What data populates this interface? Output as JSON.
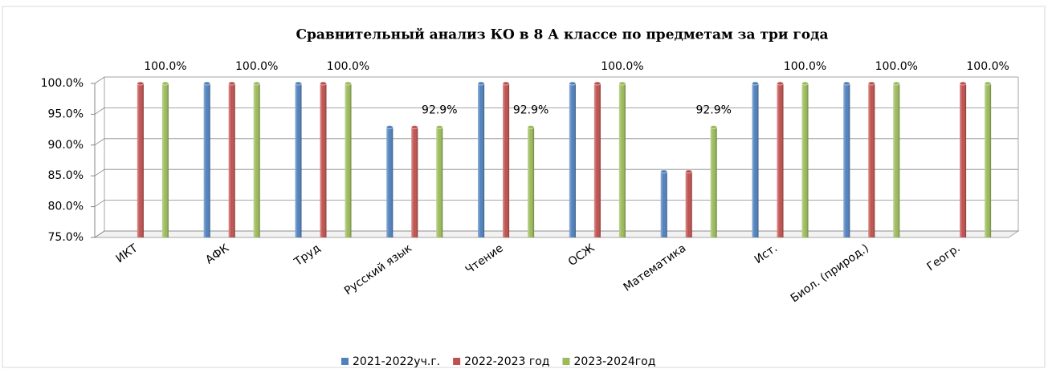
{
  "chart_data": {
    "type": "bar3d",
    "title": "Сравнительный анализ КО в 8 А классе по предметам за три года",
    "categories": [
      "ИКТ",
      "АФК",
      "Труд",
      "Русский язык",
      "Чтение",
      "ОСЖ",
      "Математика",
      "Ист.",
      "Биол. (природ.)",
      "Геогр."
    ],
    "series": [
      {
        "name": "2021-2022уч.г.",
        "color": "#4f81bd",
        "values": [
          null,
          100,
          100,
          92.9,
          100,
          100,
          85.7,
          100,
          100,
          null
        ]
      },
      {
        "name": "2022-2023 год",
        "color": "#c0504d",
        "values": [
          100,
          100,
          100,
          92.9,
          100,
          100,
          85.7,
          100,
          100,
          100
        ]
      },
      {
        "name": "2023-2024год",
        "color": "#9bbb59",
        "values": [
          100,
          100,
          100,
          92.9,
          92.9,
          100,
          92.9,
          100,
          100,
          100
        ],
        "value_labels": [
          "100.0%",
          "100.0%",
          "100.0%",
          "92.9%",
          "92.9%",
          "100.0%",
          "92.9%",
          "100.0%",
          "100.0%",
          "100.0%"
        ]
      }
    ],
    "ylim": [
      75,
      100
    ],
    "yticks": [
      {
        "value": 75,
        "label": "75.0%"
      },
      {
        "value": 80,
        "label": "80.0%"
      },
      {
        "value": 85,
        "label": "85.0%"
      },
      {
        "value": 90,
        "label": "90.0%"
      },
      {
        "value": 95,
        "label": "95.0%"
      },
      {
        "value": 100,
        "label": "100.0%"
      }
    ],
    "grid": true,
    "legend": "bottom"
  }
}
